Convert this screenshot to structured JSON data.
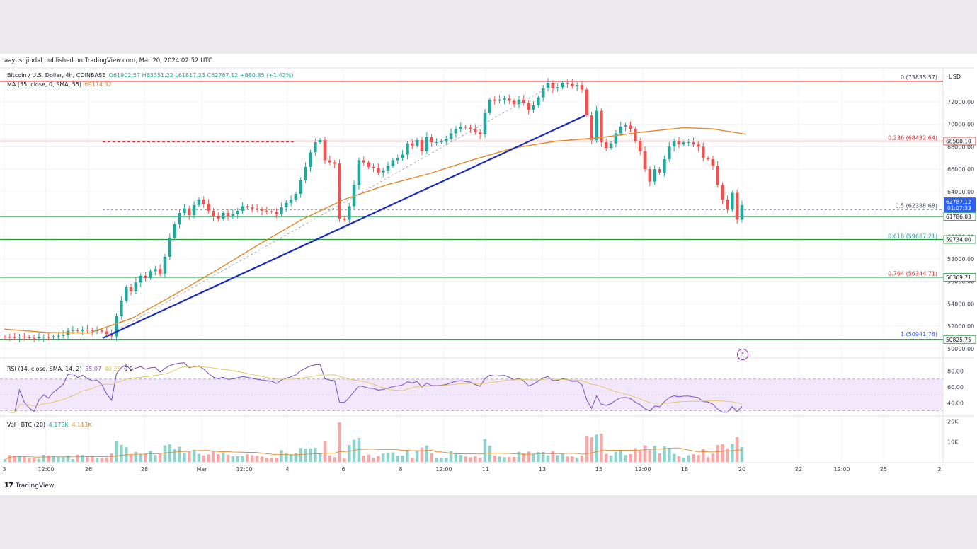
{
  "publisher": "aayushjindal published on TradingView.com, Mar 20, 2024 02:52 UTC",
  "footer": {
    "logo": "TradingView"
  },
  "price_axis_currency": "USD",
  "legend": {
    "symbol": "Bitcoin / U.S. Dollar, 4h, COINBASE",
    "ohlc": "O61902.57 H63351.22 L61817.23 C62787.12 +880.85 (+1.42%)",
    "ma_label": "MA (55, close, 0, SMA, 55)",
    "ma_value": "69114.32",
    "rsi_label": "RSI (14, close, SMA, 14, 2)",
    "rsi_value": "35.07",
    "rsi_ma_value": "40.26",
    "rsi_extra": "0 0",
    "vol_label": "Vol · BTC (20)",
    "vol_value": "4.173K",
    "vol_ma_value": "4.113K"
  },
  "colors": {
    "up": "#26a69a",
    "down": "#ef5350",
    "ma": "#e08a2c",
    "trendline": "#1a29c0",
    "support": "#1e9a3a",
    "resistance": "#c62828",
    "rsi": "#7e57c2",
    "rsi_ma": "#e6c86a"
  },
  "chart_data": [
    {
      "type": "candlestick",
      "title": "Bitcoin / U.S. Dollar, 4h, COINBASE",
      "x_ticks": [
        "3",
        "12:00",
        "26",
        "28",
        "Mar",
        "12:00",
        "4",
        "6",
        "8",
        "12:00",
        "11",
        "13",
        "15",
        "12:00",
        "18",
        "20",
        "22",
        "12:00",
        "25",
        "2"
      ],
      "y_ticks": [
        50000,
        52000,
        54000,
        56000,
        58000,
        60000,
        62000,
        64000,
        66000,
        68000,
        70000,
        72000
      ],
      "y_tick_labels": [
        "50000.00",
        "52000.00",
        "54000.00",
        "56000.00",
        "58000.00",
        "60000.00",
        "62000.00",
        "64000.00",
        "66000.00",
        "68000.00",
        "70000.00",
        "72000.00"
      ],
      "ylim": [
        49300,
        74900
      ],
      "last_price": "62787.12",
      "countdown": "01:07:33",
      "horizontal_lines": [
        {
          "price": 73835.57,
          "color": "resistance",
          "style": "solid"
        },
        {
          "price": 68500.1,
          "color": "resistance",
          "style": "solid",
          "label": "68500.10"
        },
        {
          "price": 61786.03,
          "color": "support",
          "style": "solid",
          "label": "61786.03"
        },
        {
          "price": 59734.0,
          "color": "support",
          "style": "solid",
          "label": "59734.00"
        },
        {
          "price": 56369.71,
          "color": "support",
          "style": "solid",
          "label": "56369.71"
        },
        {
          "price": 50825.75,
          "color": "support",
          "style": "solid",
          "label": "50825.75"
        }
      ],
      "fib_levels": [
        {
          "ratio": "0",
          "price": 73835.57,
          "text": "0 (73835.57)"
        },
        {
          "ratio": "0.236",
          "price": 68432.64,
          "text": "0.236 (68432.64)"
        },
        {
          "ratio": "0.5",
          "price": 62388.68,
          "text": "0.5 (62388.68)"
        },
        {
          "ratio": "0.618",
          "price": 59687.21,
          "text": "0.618 (59687.21)"
        },
        {
          "ratio": "0.764",
          "price": 56344.71,
          "text": "0.764 (56344.71)"
        },
        {
          "ratio": "1",
          "price": 50941.78,
          "text": "1 (50941.78)"
        }
      ],
      "trendline": [
        {
          "x": "Feb 26",
          "price": 50941
        },
        {
          "x": "Mar 14",
          "price": 70800
        }
      ],
      "closes": [
        51050,
        51020,
        50980,
        51070,
        51010,
        50960,
        50920,
        51000,
        51050,
        51010,
        51090,
        51150,
        51240,
        51600,
        51650,
        51580,
        51700,
        51640,
        51590,
        51620,
        51530,
        51300,
        51100,
        52900,
        54300,
        55500,
        55100,
        55900,
        56500,
        56300,
        56900,
        57100,
        56700,
        58200,
        59900,
        61100,
        62100,
        62500,
        61900,
        62800,
        63300,
        62900,
        62300,
        61800,
        61600,
        62100,
        61800,
        62000,
        62300,
        62700,
        62600,
        62500,
        62400,
        62300,
        62250,
        62200,
        62000,
        62600,
        63000,
        63300,
        63800,
        65000,
        66200,
        67500,
        68400,
        68600,
        66800,
        66600,
        66500,
        61600,
        61500,
        62700,
        64600,
        66800,
        66600,
        66200,
        66100,
        65700,
        65900,
        66300,
        66800,
        67000,
        67300,
        68300,
        68100,
        68600,
        67600,
        68900,
        68400,
        68400,
        68500,
        68700,
        69200,
        69600,
        69800,
        69700,
        69600,
        69300,
        69100,
        71000,
        72200,
        72100,
        72200,
        72300,
        72100,
        71800,
        72200,
        71900,
        71300,
        71700,
        72400,
        73200,
        73700,
        73200,
        73300,
        73700,
        73600,
        73400,
        73500,
        73100,
        70800,
        68600,
        71200,
        68400,
        67900,
        68300,
        69200,
        69800,
        69900,
        69600,
        68500,
        67600,
        66000,
        64900,
        66000,
        65700,
        66900,
        68000,
        68500,
        68200,
        68400,
        68400,
        68200,
        68000,
        67000,
        66900,
        66300,
        64600,
        63300,
        62400,
        63900,
        61500,
        62787
      ],
      "ma55_points": [
        [
          0,
          51750
        ],
        [
          60,
          51450
        ],
        [
          120,
          51400
        ],
        [
          180,
          52700
        ],
        [
          240,
          54800
        ],
        [
          300,
          57000
        ],
        [
          360,
          59300
        ],
        [
          420,
          61500
        ],
        [
          480,
          63300
        ],
        [
          540,
          64600
        ],
        [
          600,
          65600
        ],
        [
          660,
          66800
        ],
        [
          720,
          67900
        ],
        [
          780,
          68500
        ],
        [
          840,
          68800
        ],
        [
          900,
          69300
        ],
        [
          960,
          69700
        ],
        [
          1000,
          69600
        ],
        [
          1048,
          69114
        ]
      ]
    },
    {
      "type": "line",
      "title": "RSI (14, close, SMA, 14, 2)",
      "y_ticks": [
        40,
        60,
        80
      ],
      "y_tick_labels": [
        "40.00",
        "60.00",
        "80.00"
      ],
      "ylim": [
        25,
        95
      ],
      "band": [
        30,
        70
      ],
      "last_value": 35.07
    },
    {
      "type": "bar",
      "title": "Vol · BTC (20)",
      "y_ticks": [
        10000,
        20000
      ],
      "y_tick_labels": [
        "10K",
        "20K"
      ],
      "ylim": [
        0,
        22000
      ],
      "last_value": "4.173K"
    }
  ]
}
